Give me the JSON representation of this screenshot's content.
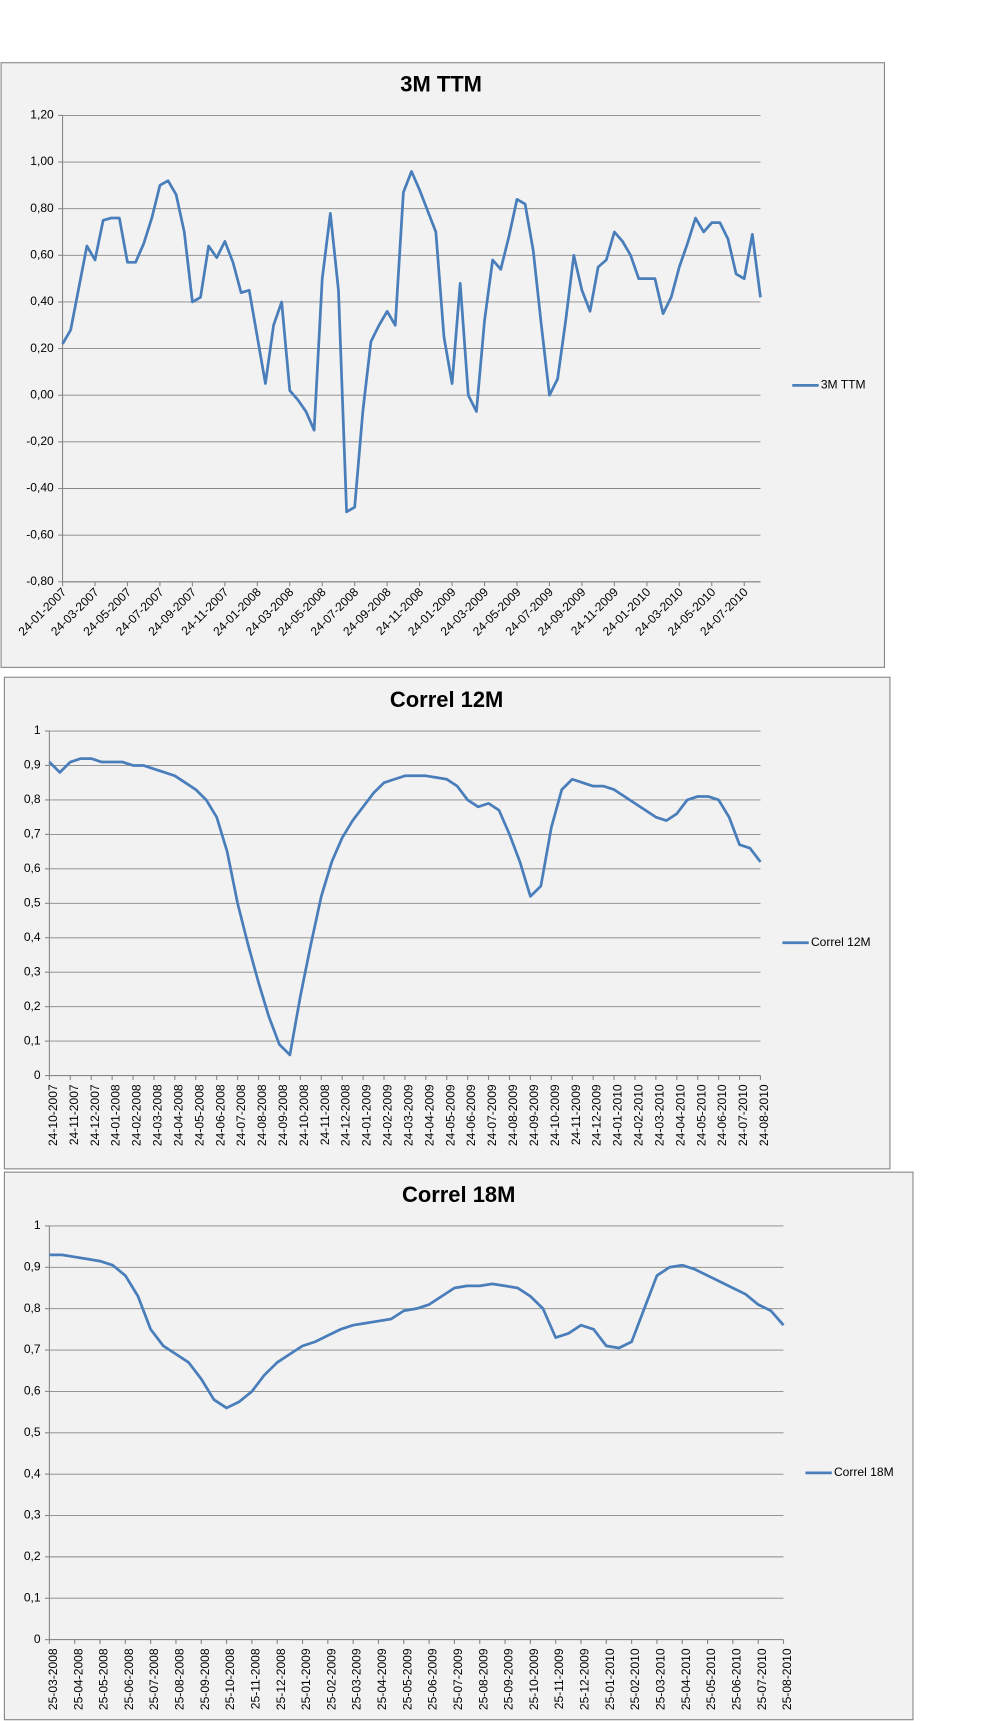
{
  "chart_data": [
    {
      "type": "line",
      "title": "3M TTM",
      "grid": true,
      "legend": "right",
      "categories": [
        "24-01-2007",
        null,
        null,
        null,
        "24-03-2007",
        null,
        null,
        null,
        "24-05-2007",
        null,
        null,
        null,
        "24-07-2007",
        null,
        null,
        null,
        "24-09-2007",
        null,
        null,
        null,
        "24-11-2007",
        null,
        null,
        null,
        "24-01-2008",
        null,
        null,
        null,
        "24-03-2008",
        null,
        null,
        null,
        "24-05-2008",
        null,
        null,
        null,
        "24-07-2008",
        null,
        null,
        null,
        "24-09-2008",
        null,
        null,
        null,
        "24-11-2008",
        null,
        null,
        null,
        "24-01-2009",
        null,
        null,
        null,
        "24-03-2009",
        null,
        null,
        null,
        "24-05-2009",
        null,
        null,
        null,
        "24-07-2009",
        null,
        null,
        null,
        "24-09-2009",
        null,
        null,
        null,
        "24-11-2009",
        null,
        null,
        null,
        "24-01-2010",
        null,
        null,
        null,
        "24-03-2010",
        null,
        null,
        null,
        "24-05-2010",
        null,
        null,
        null,
        "24-07-2010",
        null,
        null
      ],
      "series": [
        {
          "name": "3M TTM",
          "color": "#4a7ebb",
          "values": [
            0.22,
            0.28,
            0.46,
            0.64,
            0.58,
            0.75,
            0.76,
            0.76,
            0.57,
            0.57,
            0.65,
            0.76,
            0.9,
            0.92,
            0.86,
            0.7,
            0.4,
            0.42,
            0.64,
            0.59,
            0.66,
            0.57,
            0.44,
            0.45,
            0.25,
            0.05,
            0.3,
            0.4,
            0.02,
            -0.02,
            -0.07,
            -0.15,
            0.5,
            0.78,
            0.45,
            -0.5,
            -0.48,
            -0.07,
            0.23,
            0.3,
            0.36,
            0.3,
            0.87,
            0.96,
            0.88,
            0.79,
            0.7,
            0.25,
            0.05,
            0.48,
            0.0,
            -0.07,
            0.32,
            0.58,
            0.54,
            0.68,
            0.84,
            0.82,
            0.62,
            0.3,
            0.0,
            0.07,
            0.32,
            0.6,
            0.45,
            0.36,
            0.55,
            0.58,
            0.7,
            0.66,
            0.6,
            0.5,
            0.5,
            0.5,
            0.35,
            0.42,
            0.55,
            0.65,
            0.76,
            0.7,
            0.74,
            0.74,
            0.67,
            0.52,
            0.5,
            0.69,
            0.42
          ]
        }
      ],
      "ylim": [
        -0.8,
        1.2
      ],
      "yticks": [
        {
          "value": 1.2,
          "label": "1,20"
        },
        {
          "value": 1.0,
          "label": "1,00"
        },
        {
          "value": 0.8,
          "label": "0,80"
        },
        {
          "value": 0.6,
          "label": "0,60"
        },
        {
          "value": 0.4,
          "label": "0,40"
        },
        {
          "value": 0.2,
          "label": "0,20"
        },
        {
          "value": 0,
          "label": "0,00"
        },
        {
          "value": -0.2,
          "label": "-0,20"
        },
        {
          "value": -0.4,
          "label": "-0,40"
        },
        {
          "value": -0.6,
          "label": "-0,60"
        },
        {
          "value": -0.8,
          "label": "-0,80"
        }
      ]
    },
    {
      "type": "line",
      "title": "Correl 12M",
      "grid": true,
      "legend": "right",
      "categories": [
        "24-10-2007",
        null,
        "24-11-2007",
        null,
        "24-12-2007",
        null,
        "24-01-2008",
        null,
        "24-02-2008",
        null,
        "24-03-2008",
        null,
        "24-04-2008",
        null,
        "24-05-2008",
        null,
        "24-06-2008",
        null,
        "24-07-2008",
        null,
        "24-08-2008",
        null,
        "24-09-2008",
        null,
        "24-10-2008",
        null,
        "24-11-2008",
        null,
        "24-12-2008",
        null,
        "24-01-2009",
        null,
        "24-02-2009",
        null,
        "24-03-2009",
        null,
        "24-04-2009",
        null,
        "24-05-2009",
        null,
        "24-06-2009",
        null,
        "24-07-2009",
        null,
        "24-08-2009",
        null,
        "24-09-2009",
        null,
        "24-10-2009",
        null,
        "24-11-2009",
        null,
        "24-12-2009",
        null,
        "24-01-2010",
        null,
        "24-02-2010",
        null,
        "24-03-2010",
        null,
        "24-04-2010",
        null,
        "24-05-2010",
        null,
        "24-06-2010",
        null,
        "24-07-2010",
        null,
        "24-08-2010"
      ],
      "series": [
        {
          "name": "Correl 12M",
          "color": "#4a7ebb",
          "values": [
            0.91,
            0.88,
            0.91,
            0.92,
            0.92,
            0.91,
            0.91,
            0.91,
            0.9,
            0.9,
            0.89,
            0.88,
            0.87,
            0.85,
            0.83,
            0.8,
            0.75,
            0.65,
            0.5,
            0.38,
            0.27,
            0.17,
            0.09,
            0.06,
            0.23,
            0.38,
            0.52,
            0.62,
            0.69,
            0.74,
            0.78,
            0.82,
            0.85,
            0.86,
            0.87,
            0.87,
            0.87,
            0.865,
            0.86,
            0.84,
            0.8,
            0.78,
            0.79,
            0.77,
            0.7,
            0.62,
            0.52,
            0.55,
            0.72,
            0.83,
            0.86,
            0.85,
            0.84,
            0.84,
            0.83,
            0.81,
            0.79,
            0.77,
            0.75,
            0.74,
            0.76,
            0.8,
            0.81,
            0.81,
            0.8,
            0.75,
            0.67,
            0.66,
            0.62
          ]
        }
      ],
      "ylim": [
        0,
        1
      ],
      "yticks": [
        0,
        {
          "value": 0.1,
          "label": "0,1"
        },
        {
          "value": 0.2,
          "label": "0,2"
        },
        {
          "value": 0.3,
          "label": "0,3"
        },
        {
          "value": 0.4,
          "label": "0,4"
        },
        {
          "value": 0.5,
          "label": "0,5"
        },
        {
          "value": 0.6,
          "label": "0,6"
        },
        {
          "value": 0.7,
          "label": "0,7"
        },
        {
          "value": 0.8,
          "label": "0,8"
        },
        {
          "value": 0.9,
          "label": "0,9"
        },
        1
      ]
    },
    {
      "type": "line",
      "title": "Correl 18M",
      "grid": true,
      "legend": "right",
      "categories": [
        "25-03-2008",
        null,
        "25-04-2008",
        null,
        "25-05-2008",
        null,
        "25-06-2008",
        null,
        "25-07-2008",
        null,
        "25-08-2008",
        null,
        "25-09-2008",
        null,
        "25-10-2008",
        null,
        "25-11-2008",
        null,
        "25-12-2008",
        null,
        "25-01-2009",
        null,
        "25-02-2009",
        null,
        "25-03-2009",
        null,
        "25-04-2009",
        null,
        "25-05-2009",
        null,
        "25-06-2009",
        null,
        "25-07-2009",
        null,
        "25-08-2009",
        null,
        "25-09-2009",
        null,
        "25-10-2009",
        null,
        "25-11-2009",
        null,
        "25-12-2009",
        null,
        "25-01-2010",
        null,
        "25-02-2010",
        null,
        "25-03-2010",
        null,
        "25-04-2010",
        null,
        "25-05-2010",
        null,
        "25-06-2010",
        null,
        "25-07-2010",
        null,
        "25-08-2010"
      ],
      "series": [
        {
          "name": "Correl 18M",
          "color": "#4a7ebb",
          "values": [
            0.93,
            0.93,
            0.925,
            0.92,
            0.915,
            0.905,
            0.88,
            0.83,
            0.75,
            0.71,
            0.69,
            0.67,
            0.63,
            0.58,
            0.56,
            0.575,
            0.6,
            0.64,
            0.67,
            0.69,
            0.71,
            0.72,
            0.735,
            0.75,
            0.76,
            0.765,
            0.77,
            0.775,
            0.795,
            0.8,
            0.81,
            0.83,
            0.85,
            0.855,
            0.855,
            0.86,
            0.855,
            0.85,
            0.83,
            0.8,
            0.73,
            0.74,
            0.76,
            0.75,
            0.71,
            0.705,
            0.72,
            0.8,
            0.88,
            0.9,
            0.905,
            0.895,
            0.88,
            0.865,
            0.85,
            0.835,
            0.81,
            0.795,
            0.76
          ]
        }
      ],
      "ylim": [
        0,
        1
      ],
      "yticks": [
        0,
        {
          "value": 0.1,
          "label": "0,1"
        },
        {
          "value": 0.2,
          "label": "0,2"
        },
        {
          "value": 0.3,
          "label": "0,3"
        },
        {
          "value": 0.4,
          "label": "0,4"
        },
        {
          "value": 0.5,
          "label": "0,5"
        },
        {
          "value": 0.6,
          "label": "0,6"
        },
        {
          "value": 0.7,
          "label": "0,7"
        },
        {
          "value": 0.8,
          "label": "0,8"
        },
        {
          "value": 0.9,
          "label": "0,9"
        },
        1
      ]
    }
  ]
}
